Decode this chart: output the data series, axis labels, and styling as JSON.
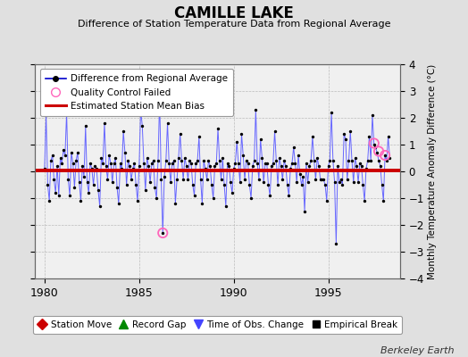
{
  "title": "CAMILLE LAKE",
  "subtitle": "Difference of Station Temperature Data from Regional Average",
  "ylabel": "Monthly Temperature Anomaly Difference (°C)",
  "xlabel_bottom": "Berkeley Earth",
  "ylim": [
    -4,
    4
  ],
  "xlim": [
    1979.5,
    1998.8
  ],
  "xticks": [
    1980,
    1985,
    1990,
    1995
  ],
  "yticks": [
    -4,
    -3,
    -2,
    -1,
    0,
    1,
    2,
    3,
    4
  ],
  "bias_value": 0.05,
  "background_color": "#e0e0e0",
  "plot_bg_color": "#f0f0f0",
  "line_color": "#6666ff",
  "dot_color": "#000000",
  "bias_color": "#cc0000",
  "qc_color": "#ff66bb",
  "qc_failed_points": [
    [
      1986.25,
      -2.3
    ],
    [
      1997.42,
      1.05
    ],
    [
      1997.67,
      0.75
    ],
    [
      1998.0,
      0.6
    ]
  ],
  "legend1_entries": [
    {
      "label": "Difference from Regional Average",
      "color": "#0000cc",
      "marker": "o",
      "linestyle": "-"
    },
    {
      "label": "Quality Control Failed",
      "color": "#ff66bb",
      "marker": "o",
      "linestyle": "none"
    },
    {
      "label": "Estimated Station Mean Bias",
      "color": "#cc0000",
      "marker": "none",
      "linestyle": "-"
    }
  ],
  "legend2_entries": [
    {
      "label": "Station Move",
      "color": "#cc0000",
      "marker": "D"
    },
    {
      "label": "Record Gap",
      "color": "#008800",
      "marker": "^"
    },
    {
      "label": "Time of Obs. Change",
      "color": "#4444ff",
      "marker": "v"
    },
    {
      "label": "Empirical Break",
      "color": "#000000",
      "marker": "s"
    }
  ],
  "time_series": {
    "years": [
      1980.0,
      1980.083,
      1980.167,
      1980.25,
      1980.333,
      1980.417,
      1980.5,
      1980.583,
      1980.667,
      1980.75,
      1980.833,
      1980.917,
      1981.0,
      1981.083,
      1981.167,
      1981.25,
      1981.333,
      1981.417,
      1981.5,
      1981.583,
      1981.667,
      1981.75,
      1981.833,
      1981.917,
      1982.0,
      1982.083,
      1982.167,
      1982.25,
      1982.333,
      1982.417,
      1982.5,
      1982.583,
      1982.667,
      1982.75,
      1982.833,
      1982.917,
      1983.0,
      1983.083,
      1983.167,
      1983.25,
      1983.333,
      1983.417,
      1983.5,
      1983.583,
      1983.667,
      1983.75,
      1983.833,
      1983.917,
      1984.0,
      1984.083,
      1984.167,
      1984.25,
      1984.333,
      1984.417,
      1984.5,
      1984.583,
      1984.667,
      1984.75,
      1984.833,
      1984.917,
      1985.0,
      1985.083,
      1985.167,
      1985.25,
      1985.333,
      1985.417,
      1985.5,
      1985.583,
      1985.667,
      1985.75,
      1985.833,
      1985.917,
      1986.0,
      1986.083,
      1986.167,
      1986.25,
      1986.333,
      1986.417,
      1986.5,
      1986.583,
      1986.667,
      1986.75,
      1986.833,
      1986.917,
      1987.0,
      1987.083,
      1987.167,
      1987.25,
      1987.333,
      1987.417,
      1987.5,
      1987.583,
      1987.667,
      1987.75,
      1987.833,
      1987.917,
      1988.0,
      1988.083,
      1988.167,
      1988.25,
      1988.333,
      1988.417,
      1988.5,
      1988.583,
      1988.667,
      1988.75,
      1988.833,
      1988.917,
      1989.0,
      1989.083,
      1989.167,
      1989.25,
      1989.333,
      1989.417,
      1989.5,
      1989.583,
      1989.667,
      1989.75,
      1989.833,
      1989.917,
      1990.0,
      1990.083,
      1990.167,
      1990.25,
      1990.333,
      1990.417,
      1990.5,
      1990.583,
      1990.667,
      1990.75,
      1990.833,
      1990.917,
      1991.0,
      1991.083,
      1991.167,
      1991.25,
      1991.333,
      1991.417,
      1991.5,
      1991.583,
      1991.667,
      1991.75,
      1991.833,
      1991.917,
      1992.0,
      1992.083,
      1992.167,
      1992.25,
      1992.333,
      1992.417,
      1992.5,
      1992.583,
      1992.667,
      1992.75,
      1992.833,
      1992.917,
      1993.0,
      1993.083,
      1993.167,
      1993.25,
      1993.333,
      1993.417,
      1993.5,
      1993.583,
      1993.667,
      1993.75,
      1993.833,
      1993.917,
      1994.0,
      1994.083,
      1994.167,
      1994.25,
      1994.333,
      1994.417,
      1994.5,
      1994.583,
      1994.667,
      1994.75,
      1994.833,
      1994.917,
      1995.0,
      1995.083,
      1995.167,
      1995.25,
      1995.333,
      1995.417,
      1995.5,
      1995.583,
      1995.667,
      1995.75,
      1995.833,
      1995.917,
      1996.0,
      1996.083,
      1996.167,
      1996.25,
      1996.333,
      1996.417,
      1996.5,
      1996.583,
      1996.667,
      1996.75,
      1996.833,
      1996.917,
      1997.0,
      1997.083,
      1997.167,
      1997.25,
      1997.333,
      1997.417,
      1997.5,
      1997.583,
      1997.667,
      1997.75,
      1997.833,
      1997.917,
      1998.0,
      1998.083,
      1998.167,
      1998.25
    ],
    "values": [
      0.1,
      2.1,
      -0.5,
      -1.1,
      0.4,
      0.6,
      -0.3,
      -0.8,
      0.2,
      -0.9,
      0.5,
      0.3,
      0.8,
      0.6,
      2.2,
      -0.3,
      -0.9,
      0.7,
      0.3,
      -0.6,
      0.4,
      0.7,
      -0.4,
      -1.1,
      0.2,
      -0.2,
      1.7,
      -0.4,
      -0.8,
      0.3,
      0.1,
      -0.5,
      0.2,
      0.1,
      -0.7,
      -1.3,
      0.5,
      0.3,
      1.8,
      0.2,
      -0.3,
      0.6,
      0.3,
      -0.4,
      0.3,
      0.5,
      -0.6,
      -1.2,
      0.3,
      0.1,
      1.5,
      0.7,
      -0.5,
      0.4,
      0.2,
      -0.3,
      0.1,
      0.3,
      -0.5,
      -1.1,
      0.2,
      2.3,
      1.7,
      0.3,
      -0.7,
      0.5,
      0.2,
      -0.4,
      0.3,
      0.4,
      -0.6,
      -1.0,
      0.4,
      2.7,
      -0.3,
      -2.3,
      -0.2,
      0.4,
      1.8,
      0.3,
      -0.4,
      0.3,
      0.4,
      -1.2,
      -0.3,
      0.5,
      1.4,
      0.4,
      -0.3,
      0.5,
      0.2,
      -0.3,
      0.4,
      0.3,
      -0.5,
      -0.9,
      0.3,
      0.4,
      1.3,
      -0.3,
      -1.2,
      0.4,
      0.1,
      -0.3,
      0.4,
      0.2,
      -0.5,
      -1.0,
      0.2,
      0.3,
      1.6,
      0.4,
      -0.3,
      0.5,
      -0.5,
      -1.3,
      0.3,
      0.2,
      -0.4,
      -0.8,
      0.1,
      0.3,
      1.1,
      0.3,
      -0.4,
      1.4,
      0.6,
      -0.3,
      0.4,
      0.3,
      -0.5,
      -1.0,
      0.2,
      0.4,
      2.3,
      0.3,
      -0.3,
      1.2,
      0.5,
      -0.4,
      0.3,
      0.3,
      -0.5,
      -0.9,
      0.2,
      0.3,
      1.5,
      0.4,
      -0.5,
      0.5,
      0.2,
      -0.3,
      0.4,
      0.2,
      -0.5,
      -0.9,
      0.1,
      0.3,
      0.9,
      0.3,
      -0.4,
      0.6,
      -0.1,
      -0.5,
      -0.2,
      -1.5,
      0.3,
      -0.4,
      0.2,
      0.4,
      1.3,
      0.4,
      -0.3,
      0.5,
      0.2,
      -0.3,
      -0.3,
      -0.3,
      -0.5,
      -1.1,
      0.2,
      0.4,
      2.2,
      0.4,
      -0.4,
      -2.7,
      0.2,
      -0.4,
      -0.3,
      -0.5,
      1.4,
      1.2,
      -0.3,
      0.4,
      1.5,
      0.4,
      -0.4,
      0.5,
      0.2,
      -0.4,
      0.3,
      0.2,
      -0.5,
      -1.1,
      0.1,
      0.4,
      1.3,
      0.4,
      2.1,
      1.0,
      0.9,
      0.7,
      0.4,
      0.2,
      -0.5,
      -1.1,
      0.6,
      0.4,
      1.3,
      0.5
    ]
  }
}
